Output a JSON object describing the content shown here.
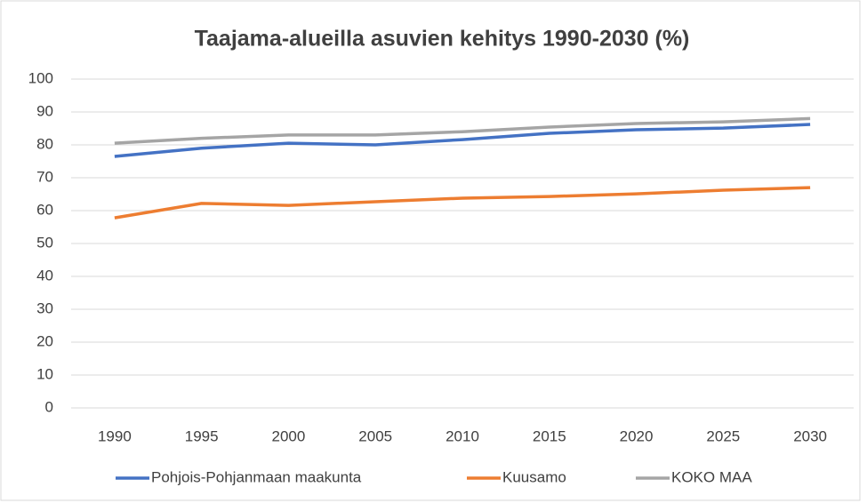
{
  "chart_data": {
    "type": "line",
    "title": "Taajama-alueilla asuvien kehitys 1990-2030 (%)",
    "categories": [
      "1990",
      "1995",
      "2000",
      "2005",
      "2010",
      "2015",
      "2020",
      "2025",
      "2030"
    ],
    "series": [
      {
        "name": "Pohjois-Pohjanmaan maakunta",
        "color": "#4472c4",
        "values": [
          76.5,
          79,
          80.5,
          80,
          81.6,
          83.5,
          84.6,
          85.1,
          86.2
        ]
      },
      {
        "name": "Kuusamo",
        "color": "#ed7d31",
        "values": [
          57.8,
          62.2,
          61.6,
          62.7,
          63.8,
          64.3,
          65.1,
          66.2,
          67
        ]
      },
      {
        "name": "KOKO MAA",
        "color": "#a5a5a5",
        "values": [
          80.5,
          82,
          83,
          83,
          84,
          85.4,
          86.5,
          87,
          88
        ]
      }
    ],
    "ylim": [
      0,
      100
    ],
    "yticks": [
      0,
      10,
      20,
      30,
      40,
      50,
      60,
      70,
      80,
      90,
      100
    ],
    "grid": true,
    "legend": "bottom"
  }
}
